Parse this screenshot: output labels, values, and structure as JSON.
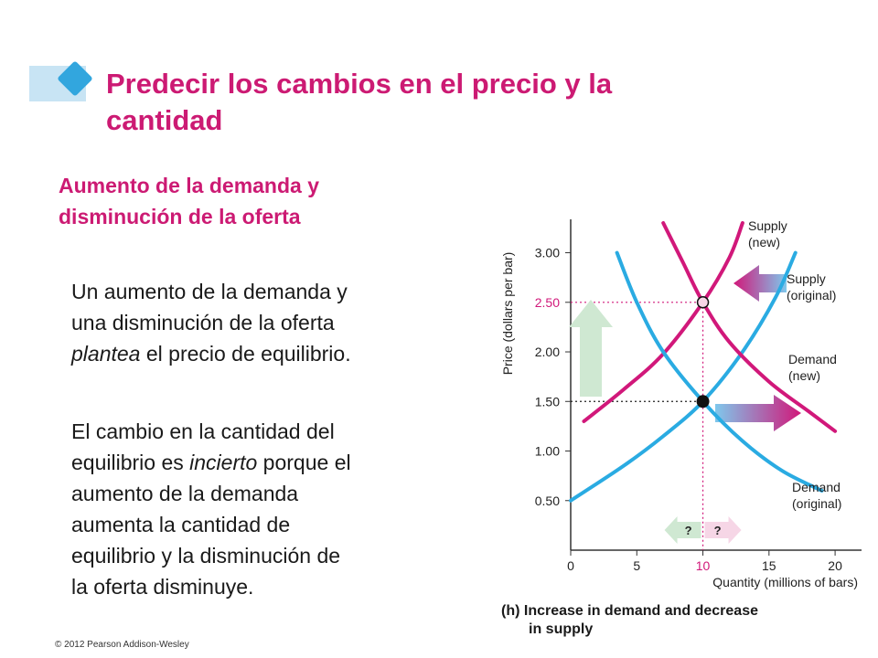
{
  "slide": {
    "title_line1": "Predecir los cambios en el precio y la",
    "title_line2": "cantidad",
    "subtitle_line1": "Aumento de la demanda y",
    "subtitle_line2": "disminución de la oferta",
    "para1": {
      "line1": "Un aumento de la demanda y",
      "line2": "una disminución de la oferta",
      "line3_em": "plantea",
      "line3_rest": " el precio de equilibrio."
    },
    "para2": {
      "line1": "El cambio en la cantidad del",
      "line2_a": "equilibrio es ",
      "line2_em": "incierto",
      "line2_b": " porque el",
      "line3": "aumento de la demanda",
      "line4": "aumenta la cantidad de",
      "line5": "equilibrio y la disminución de",
      "line6": "la oferta disminuye."
    },
    "copyright": "© 2012 Pearson Addison-Wesley"
  },
  "colors": {
    "accent": "#cc1a73",
    "blue": "#2aabe2",
    "magenta": "#d1187a",
    "header_light": "#c8e4f4",
    "header_diamond": "#32a6de",
    "arrow_green": "#cfe8d2",
    "arrow_pink": "#f6d6e6"
  },
  "chart_data": {
    "type": "line",
    "xlabel": "Quantity (millions of bars)",
    "ylabel": "Price (dollars per bar)",
    "xlim": [
      0,
      22
    ],
    "ylim": [
      0,
      3.3
    ],
    "x_ticks": [
      "0",
      "5",
      "10",
      "15",
      "20"
    ],
    "x_tick_values": [
      0,
      5,
      10,
      15,
      20
    ],
    "y_ticks": [
      "0.50",
      "1.00",
      "1.50",
      "2.00",
      "2.50",
      "3.00"
    ],
    "y_tick_values": [
      0.5,
      1.0,
      1.5,
      2.0,
      2.5,
      3.0
    ],
    "highlight_x_tick": "10",
    "highlight_y_tick": "2.50",
    "series": [
      {
        "name_line1": "Supply",
        "name_line2": "(new)",
        "color": "magenta",
        "points": [
          [
            1.0,
            1.3
          ],
          [
            4.0,
            1.62
          ],
          [
            7.0,
            1.98
          ],
          [
            10.0,
            2.5
          ],
          [
            12.0,
            2.95
          ],
          [
            13.0,
            3.3
          ]
        ]
      },
      {
        "name_line1": "Supply",
        "name_line2": "(original)",
        "color": "blue",
        "points": [
          [
            0.0,
            0.5
          ],
          [
            4.0,
            0.85
          ],
          [
            7.0,
            1.15
          ],
          [
            10.0,
            1.5
          ],
          [
            13.0,
            2.0
          ],
          [
            15.5,
            2.55
          ],
          [
            17.0,
            3.0
          ]
        ]
      },
      {
        "name_line1": "Demand",
        "name_line2": "(new)",
        "color": "magenta",
        "points": [
          [
            7.0,
            3.3
          ],
          [
            8.5,
            2.9
          ],
          [
            10.0,
            2.5
          ],
          [
            12.0,
            2.1
          ],
          [
            15.0,
            1.7
          ],
          [
            18.0,
            1.4
          ],
          [
            20.0,
            1.2
          ]
        ]
      },
      {
        "name_line1": "Demand",
        "name_line2": "(original)",
        "color": "blue",
        "points": [
          [
            3.5,
            3.0
          ],
          [
            5.0,
            2.5
          ],
          [
            7.0,
            2.0
          ],
          [
            10.0,
            1.5
          ],
          [
            13.0,
            1.1
          ],
          [
            16.0,
            0.8
          ],
          [
            19.0,
            0.6
          ]
        ]
      }
    ],
    "equilibria": [
      {
        "x": 10,
        "y": 1.5,
        "style": "filled"
      },
      {
        "x": 10,
        "y": 2.5,
        "style": "outline"
      }
    ],
    "question_labels": [
      "?",
      "?"
    ],
    "caption_line1": "(h) Increase in demand and decrease",
    "caption_line2": "in supply"
  }
}
